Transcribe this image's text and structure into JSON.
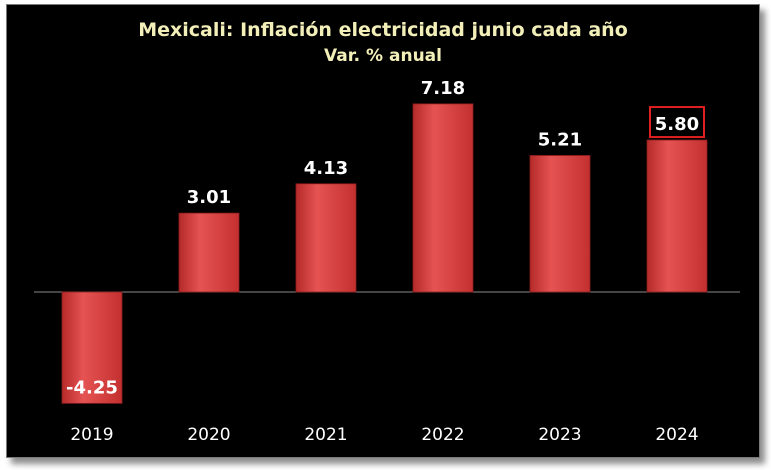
{
  "chart_data": {
    "type": "bar",
    "title": "Mexicali: Inflación electricidad junio cada año",
    "subtitle": "Var. % anual",
    "categories": [
      "2019",
      "2020",
      "2021",
      "2022",
      "2023",
      "2024"
    ],
    "values": [
      -4.25,
      3.01,
      4.13,
      7.18,
      5.21,
      5.8
    ],
    "value_labels": [
      "-4.25",
      "3.01",
      "4.13",
      "7.18",
      "5.21",
      "5.80"
    ],
    "highlighted": "2024",
    "ylim": [
      -4.25,
      7.18
    ],
    "grid": false,
    "legend": "none",
    "colors": {
      "background": "#000000",
      "bar": "#d23c3c",
      "title": "#f3efb8",
      "labels": "#ffffff",
      "highlight_box": "#e02020"
    }
  }
}
